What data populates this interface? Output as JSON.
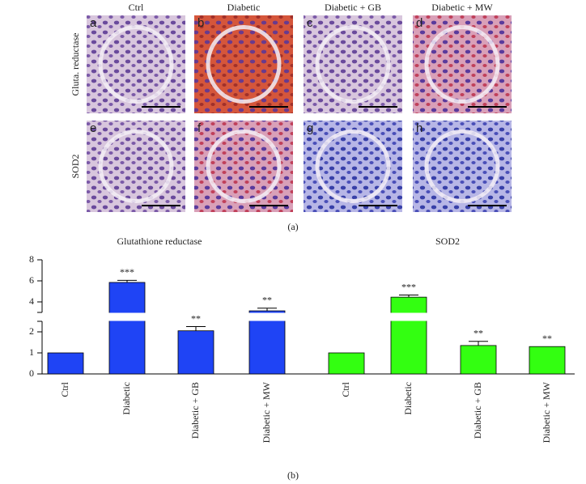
{
  "figure": {
    "columns": [
      "Ctrl",
      "Diabetic",
      "Diabetic + GB",
      "Diabetic + MW"
    ],
    "rows": [
      "Gluta. reductase",
      "SOD2"
    ],
    "letters": [
      "a",
      "b",
      "c",
      "d",
      "e",
      "f",
      "g",
      "h"
    ],
    "caption_a": "(a)",
    "caption_b": "(b)"
  },
  "chart_data": [
    {
      "type": "bar",
      "title": "Glutathione reductase",
      "categories": [
        "Ctrl",
        "Diabetic",
        "Diabetic + GB",
        "Diabetic + MW"
      ],
      "values": [
        1,
        5.85,
        2.05,
        3.15
      ],
      "errors": [
        0,
        0.2,
        0.2,
        0.25
      ],
      "annotations": [
        null,
        "***",
        "**",
        "**"
      ],
      "color": "#1f44f5",
      "ylim": [
        0,
        8
      ],
      "y_break": [
        2.5,
        3
      ],
      "yticks": [
        0,
        1,
        2,
        4,
        6,
        8
      ]
    },
    {
      "type": "bar",
      "title": "SOD2",
      "categories": [
        "Ctrl",
        "Diabetic",
        "Diabetic + GB",
        "Diabetic + MW"
      ],
      "values": [
        1,
        4.45,
        1.35,
        1.3
      ],
      "errors": [
        0,
        0.2,
        0.2,
        0
      ],
      "annotations": [
        null,
        "***",
        "**",
        "**"
      ],
      "color": "#33ff11",
      "ylim": [
        0,
        8
      ],
      "y_break": [
        2.5,
        3
      ]
    }
  ]
}
